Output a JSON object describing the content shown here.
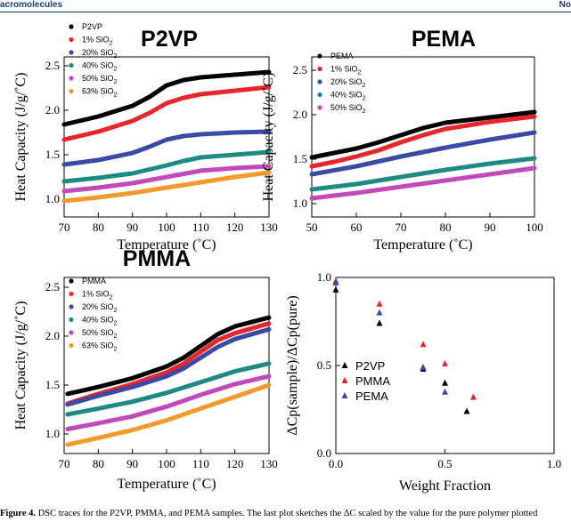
{
  "header": {
    "journal": "acromolecules",
    "page_corner": "No"
  },
  "caption": {
    "label": "Figure 4.",
    "text": " DSC traces for the P2VP, PMMA, and PEMA samples. The last plot sketches the ΔC  scaled by the value for the pure polymer plotted"
  },
  "colors": {
    "black": "#000000",
    "red": "#e8262b",
    "blue": "#3a4aa6",
    "teal": "#1d8b83",
    "magenta": "#c24ab8",
    "orange": "#f39a2c"
  },
  "chart_data": [
    {
      "type": "line",
      "title": "P2VP",
      "xlabel": "Temperature (˚C)",
      "ylabel": "Heat Capacity (J/g/˚C)",
      "xlim": [
        70,
        130
      ],
      "ylim": [
        0.8,
        2.6
      ],
      "xticks": [
        70,
        80,
        90,
        100,
        110,
        120,
        130
      ],
      "yticks": [
        1.0,
        1.5,
        2.0,
        2.5
      ],
      "xtick_labels": [
        "70",
        "80",
        "90",
        "100",
        "110",
        "120",
        "130"
      ],
      "ytick_labels": [
        "1.0",
        "1.5",
        "2.0",
        "2.5"
      ],
      "legend_position": "top-left",
      "series": [
        {
          "name": "P2VP",
          "color": "#000000",
          "x": [
            70,
            80,
            90,
            95,
            100,
            105,
            110,
            120,
            130
          ],
          "values": [
            1.84,
            1.93,
            2.05,
            2.15,
            2.28,
            2.34,
            2.37,
            2.4,
            2.43
          ]
        },
        {
          "name": "1% SiO",
          "name_sub": "2",
          "color": "#e8262b",
          "x": [
            70,
            80,
            90,
            95,
            100,
            105,
            110,
            120,
            130
          ],
          "values": [
            1.67,
            1.76,
            1.88,
            1.97,
            2.08,
            2.14,
            2.18,
            2.22,
            2.26
          ]
        },
        {
          "name": "20% SiO",
          "name_sub": "2",
          "color": "#3a4aa6",
          "x": [
            70,
            80,
            90,
            95,
            100,
            105,
            110,
            120,
            130
          ],
          "values": [
            1.39,
            1.44,
            1.52,
            1.59,
            1.67,
            1.71,
            1.73,
            1.75,
            1.76
          ]
        },
        {
          "name": "40% SiO",
          "name_sub": "2",
          "color": "#1d8b83",
          "x": [
            70,
            80,
            90,
            100,
            105,
            110,
            120,
            130
          ],
          "values": [
            1.2,
            1.24,
            1.29,
            1.38,
            1.43,
            1.47,
            1.5,
            1.53
          ]
        },
        {
          "name": "50% SiO",
          "name_sub": "2",
          "color": "#c24ab8",
          "x": [
            70,
            80,
            90,
            100,
            110,
            120,
            130
          ],
          "values": [
            1.09,
            1.13,
            1.18,
            1.25,
            1.32,
            1.35,
            1.37
          ]
        },
        {
          "name": "63% SiO",
          "name_sub": "2",
          "color": "#f39a2c",
          "x": [
            70,
            80,
            90,
            100,
            110,
            120,
            130
          ],
          "values": [
            0.98,
            1.02,
            1.07,
            1.13,
            1.19,
            1.25,
            1.3
          ]
        }
      ]
    },
    {
      "type": "line",
      "title": "PEMA",
      "xlabel": "Temperature (˚C)",
      "ylabel": "Heat Capacity (J/g/˚C)",
      "xlim": [
        50,
        100
      ],
      "ylim": [
        0.85,
        2.65
      ],
      "xticks": [
        50,
        60,
        70,
        80,
        90,
        100
      ],
      "yticks": [
        1.0,
        1.5,
        2.0,
        2.5
      ],
      "xtick_labels": [
        "50",
        "60",
        "70",
        "80",
        "90",
        "100"
      ],
      "ytick_labels": [
        "1.0",
        "1.5",
        "2.0",
        "2.5"
      ],
      "legend_position": "top-left",
      "series": [
        {
          "name": "PEMA",
          "color": "#000000",
          "x": [
            50,
            55,
            60,
            65,
            70,
            75,
            80,
            85,
            90,
            95,
            100
          ],
          "values": [
            1.52,
            1.57,
            1.62,
            1.69,
            1.77,
            1.85,
            1.91,
            1.94,
            1.97,
            2.0,
            2.03
          ]
        },
        {
          "name": "1% SiO",
          "name_sub": "2",
          "color": "#e8262b",
          "x": [
            50,
            55,
            60,
            65,
            70,
            75,
            80,
            85,
            90,
            95,
            100
          ],
          "values": [
            1.42,
            1.47,
            1.53,
            1.6,
            1.69,
            1.77,
            1.84,
            1.88,
            1.92,
            1.95,
            1.98
          ]
        },
        {
          "name": "20% SiO",
          "name_sub": "2",
          "color": "#3a4aa6",
          "x": [
            50,
            60,
            70,
            80,
            90,
            100
          ],
          "values": [
            1.33,
            1.42,
            1.53,
            1.63,
            1.72,
            1.8
          ]
        },
        {
          "name": "40% SiO",
          "name_sub": "2",
          "color": "#1d8b83",
          "x": [
            50,
            60,
            70,
            80,
            90,
            100
          ],
          "values": [
            1.16,
            1.22,
            1.3,
            1.38,
            1.45,
            1.51
          ]
        },
        {
          "name": "50% SiO",
          "name_sub": "2",
          "color": "#c24ab8",
          "x": [
            50,
            60,
            70,
            80,
            90,
            100
          ],
          "values": [
            1.06,
            1.12,
            1.19,
            1.26,
            1.33,
            1.4
          ]
        }
      ]
    },
    {
      "type": "line",
      "title": "PMMA",
      "xlabel": "Temperature (˚C)",
      "ylabel": "Heat Capacity (J/g/˚C)",
      "xlim": [
        70,
        130
      ],
      "ylim": [
        0.8,
        2.6
      ],
      "xticks": [
        70,
        80,
        90,
        100,
        110,
        120,
        130
      ],
      "yticks": [
        1.0,
        1.5,
        2.0,
        2.5
      ],
      "xtick_labels": [
        "70",
        "80",
        "90",
        "100",
        "110",
        "120",
        "130"
      ],
      "ytick_labels": [
        "1.0",
        "1.5",
        "2.0",
        "2.5"
      ],
      "legend_position": "top-left",
      "series": [
        {
          "name": "PMMA",
          "color": "#000000",
          "x": [
            71,
            80,
            90,
            100,
            105,
            110,
            115,
            120,
            130
          ],
          "values": [
            1.41,
            1.48,
            1.57,
            1.69,
            1.78,
            1.9,
            2.02,
            2.1,
            2.19
          ]
        },
        {
          "name": "1% SiO",
          "name_sub": "2",
          "color": "#e8262b",
          "x": [
            71,
            80,
            90,
            100,
            105,
            110,
            115,
            120,
            130
          ],
          "values": [
            1.31,
            1.41,
            1.51,
            1.63,
            1.72,
            1.84,
            1.96,
            2.03,
            2.13
          ]
        },
        {
          "name": "20% SiO",
          "name_sub": "2",
          "color": "#3a4aa6",
          "x": [
            71,
            80,
            90,
            100,
            105,
            110,
            115,
            120,
            130
          ],
          "values": [
            1.3,
            1.39,
            1.48,
            1.59,
            1.67,
            1.78,
            1.89,
            1.97,
            2.07
          ]
        },
        {
          "name": "40% SiO",
          "name_sub": "2",
          "color": "#1d8b83",
          "x": [
            71,
            80,
            90,
            100,
            110,
            120,
            130
          ],
          "values": [
            1.2,
            1.26,
            1.33,
            1.42,
            1.53,
            1.64,
            1.72
          ]
        },
        {
          "name": "50% SiO",
          "name_sub": "2",
          "color": "#c24ab8",
          "x": [
            71,
            80,
            90,
            100,
            110,
            120,
            130
          ],
          "values": [
            1.05,
            1.11,
            1.18,
            1.28,
            1.4,
            1.51,
            1.59
          ]
        },
        {
          "name": "63% SiO",
          "name_sub": "2",
          "color": "#f39a2c",
          "x": [
            71,
            80,
            90,
            100,
            110,
            120,
            130
          ],
          "values": [
            0.89,
            0.96,
            1.04,
            1.14,
            1.26,
            1.38,
            1.5
          ]
        }
      ]
    },
    {
      "type": "scatter",
      "title": "",
      "xlabel": "Weight Fraction",
      "ylabel": "ΔCp(sample)/ΔCp(pure)",
      "xlim": [
        0.0,
        1.0
      ],
      "ylim": [
        0.0,
        1.0
      ],
      "xticks": [
        0.0,
        0.5,
        1.0
      ],
      "yticks": [
        0.0,
        0.5,
        1.0
      ],
      "xtick_labels": [
        "0.0",
        "0.5",
        "1.0"
      ],
      "ytick_labels": [
        "0.0",
        "0.5",
        "1.0"
      ],
      "legend_position": "lower-left",
      "series": [
        {
          "name": "P2VP",
          "color": "#000000",
          "x": [
            0.0,
            0.2,
            0.4,
            0.5,
            0.6
          ],
          "values": [
            0.93,
            0.74,
            0.48,
            0.4,
            0.24
          ]
        },
        {
          "name": "PMMA",
          "color": "#e8262b",
          "x": [
            0.0,
            0.2,
            0.4,
            0.5,
            0.63
          ],
          "values": [
            0.98,
            0.85,
            0.62,
            0.51,
            0.32
          ]
        },
        {
          "name": "PEMA",
          "color": "#3a4aa6",
          "x": [
            0.0,
            0.2,
            0.4,
            0.5
          ],
          "values": [
            0.97,
            0.8,
            0.49,
            0.35
          ]
        }
      ]
    }
  ]
}
